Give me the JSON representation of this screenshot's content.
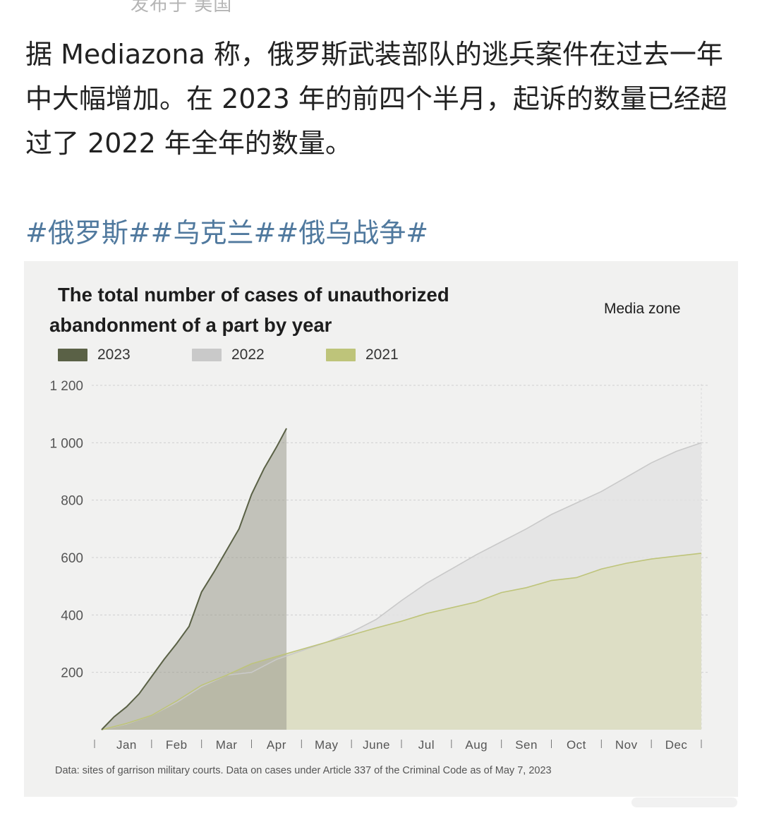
{
  "post": {
    "top_cut_text": "发布于 美国",
    "body": "据 Mediazona 称，俄罗斯武装部队的逃兵案件在过去一年中大幅增加。在 2023 年的前四个半月，起诉的数量已经超过了 2022 年全年的数量。",
    "hashtags": "#俄罗斯##乌克兰##俄乌战争#"
  },
  "colors": {
    "s2023_line": "#5a6146",
    "s2023_fill": "#9a9a8e",
    "s2022_line": "#c9c9c9",
    "s2022_fill": "#e3e3e3",
    "s2021_line": "#bec47a",
    "s2021_fill": "#dcddc0",
    "hashtag": "#50799e"
  },
  "chart_data": {
    "type": "area",
    "title_line1": "The total number of cases of unauthorized",
    "title_line2": "abandonment of a part by year",
    "source_label": "Media zone",
    "footnote": "Data: sites of garrison military courts. Data on cases under Article 337 of the Criminal Code as of May 7, 2023",
    "legend": [
      "2023",
      "2022",
      "2021"
    ],
    "legend_placement": "top-left",
    "grid": true,
    "ylim": [
      0,
      1200
    ],
    "yticks": [
      200,
      400,
      600,
      800,
      1000
    ],
    "ytick_labels": [
      "200",
      "400",
      "600",
      "800",
      "1 000",
      "1 200"
    ],
    "ytick_values": [
      200,
      400,
      600,
      800,
      1000,
      1200
    ],
    "xlim": [
      0,
      12
    ],
    "xtick_labels": [
      "Jan",
      "Feb",
      "Mar",
      "Apr",
      "May",
      "June",
      "Jul",
      "Aug",
      "Sen",
      "Oct",
      "Nov",
      "Dec"
    ],
    "series": [
      {
        "name": "2021",
        "x": [
          0,
          0.5,
          1,
          1.5,
          2,
          2.5,
          3,
          3.5,
          4,
          4.5,
          5,
          5.5,
          6,
          6.5,
          7,
          7.5,
          8,
          8.5,
          9,
          9.5,
          10,
          10.5,
          11,
          11.5,
          12
        ],
        "values": [
          0,
          22,
          50,
          100,
          155,
          190,
          230,
          255,
          280,
          305,
          330,
          355,
          378,
          405,
          425,
          445,
          478,
          495,
          520,
          530,
          560,
          580,
          595,
          605,
          615
        ]
      },
      {
        "name": "2022",
        "x": [
          0,
          0.5,
          1,
          1.5,
          2,
          2.5,
          3,
          3.5,
          4,
          4.5,
          5,
          5.5,
          6,
          6.5,
          7,
          7.5,
          8,
          8.5,
          9,
          9.5,
          10,
          10.5,
          11,
          11.5,
          12
        ],
        "values": [
          0,
          20,
          50,
          95,
          150,
          190,
          200,
          245,
          275,
          305,
          340,
          385,
          450,
          510,
          560,
          610,
          655,
          700,
          750,
          790,
          830,
          880,
          930,
          970,
          1000
        ]
      },
      {
        "name": "2023",
        "x": [
          0,
          0.25,
          0.5,
          0.75,
          1,
          1.25,
          1.5,
          1.75,
          2,
          2.25,
          2.5,
          2.75,
          3,
          3.25,
          3.5,
          3.7
        ],
        "values": [
          0,
          45,
          80,
          125,
          185,
          245,
          300,
          360,
          480,
          550,
          625,
          700,
          820,
          910,
          985,
          1050
        ]
      }
    ]
  }
}
